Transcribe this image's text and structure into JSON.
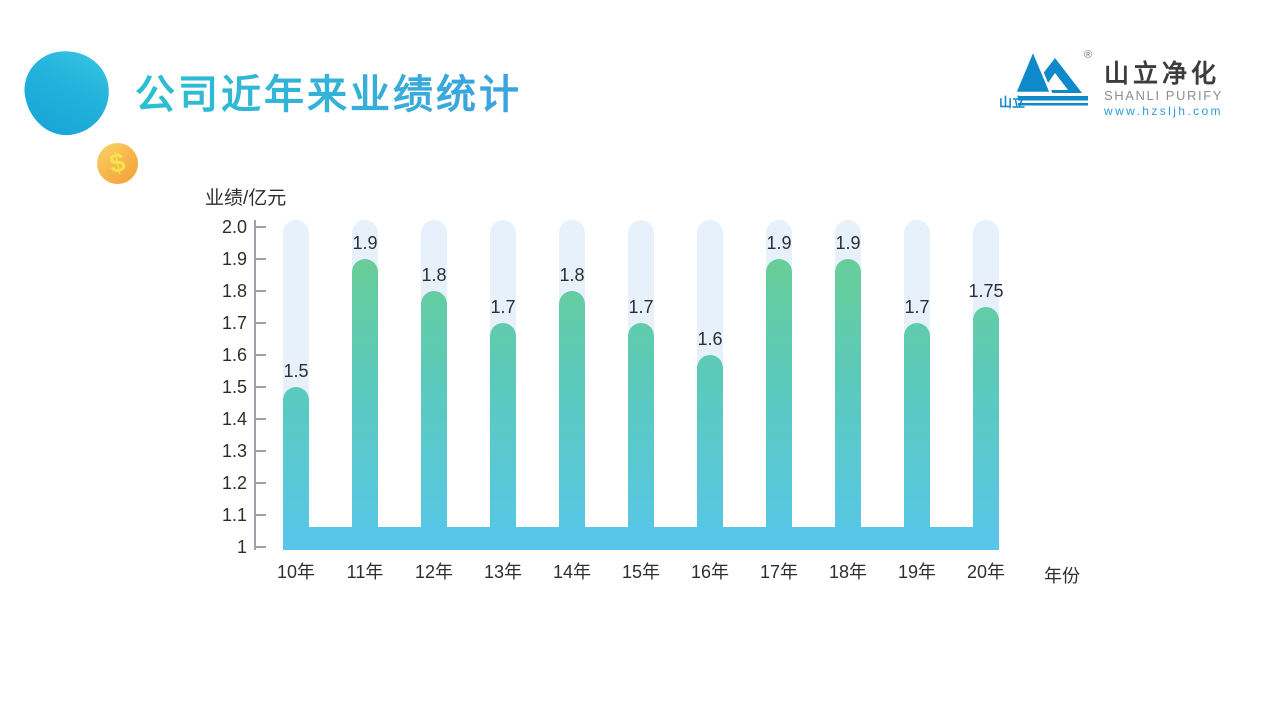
{
  "slide": {
    "title": "公司近年来业绩统计",
    "coin_symbol": "$"
  },
  "logo": {
    "registered_mark": "®",
    "mountain_label": "山立",
    "cn_name": "山立净化",
    "en_name": "SHANLI PURIFY",
    "website": "www.hzsljh.com",
    "brand_color": "#1089CB"
  },
  "chart_data": {
    "type": "bar",
    "title": "公司近年来业绩统计",
    "ylabel": "业绩/亿元",
    "xlabel": "年份",
    "categories": [
      "10年",
      "11年",
      "12年",
      "13年",
      "14年",
      "15年",
      "16年",
      "17年",
      "18年",
      "19年",
      "20年"
    ],
    "values": [
      1.5,
      1.9,
      1.8,
      1.7,
      1.8,
      1.7,
      1.6,
      1.9,
      1.9,
      1.7,
      1.75
    ],
    "value_labels": [
      "1.5",
      "1.9",
      "1.8",
      "1.7",
      "1.8",
      "1.7",
      "1.6",
      "1.9",
      "1.9",
      "1.7",
      "1.75"
    ],
    "ylim": [
      1,
      2
    ],
    "yticks": [
      "2.0",
      "1.9",
      "1.8",
      "1.7",
      "1.6",
      "1.5",
      "1.4",
      "1.3",
      "1.2",
      "1.1",
      "1"
    ],
    "grid": false,
    "legend": null,
    "colors": {
      "bar_gradient_top": "#6CCE8C",
      "bar_gradient_mid": "#5BCABB",
      "bar_gradient_bottom": "#58C6E9",
      "track": "#E7F1FB",
      "axis": "#9AA3AB",
      "text": "#2E2E2E"
    }
  }
}
